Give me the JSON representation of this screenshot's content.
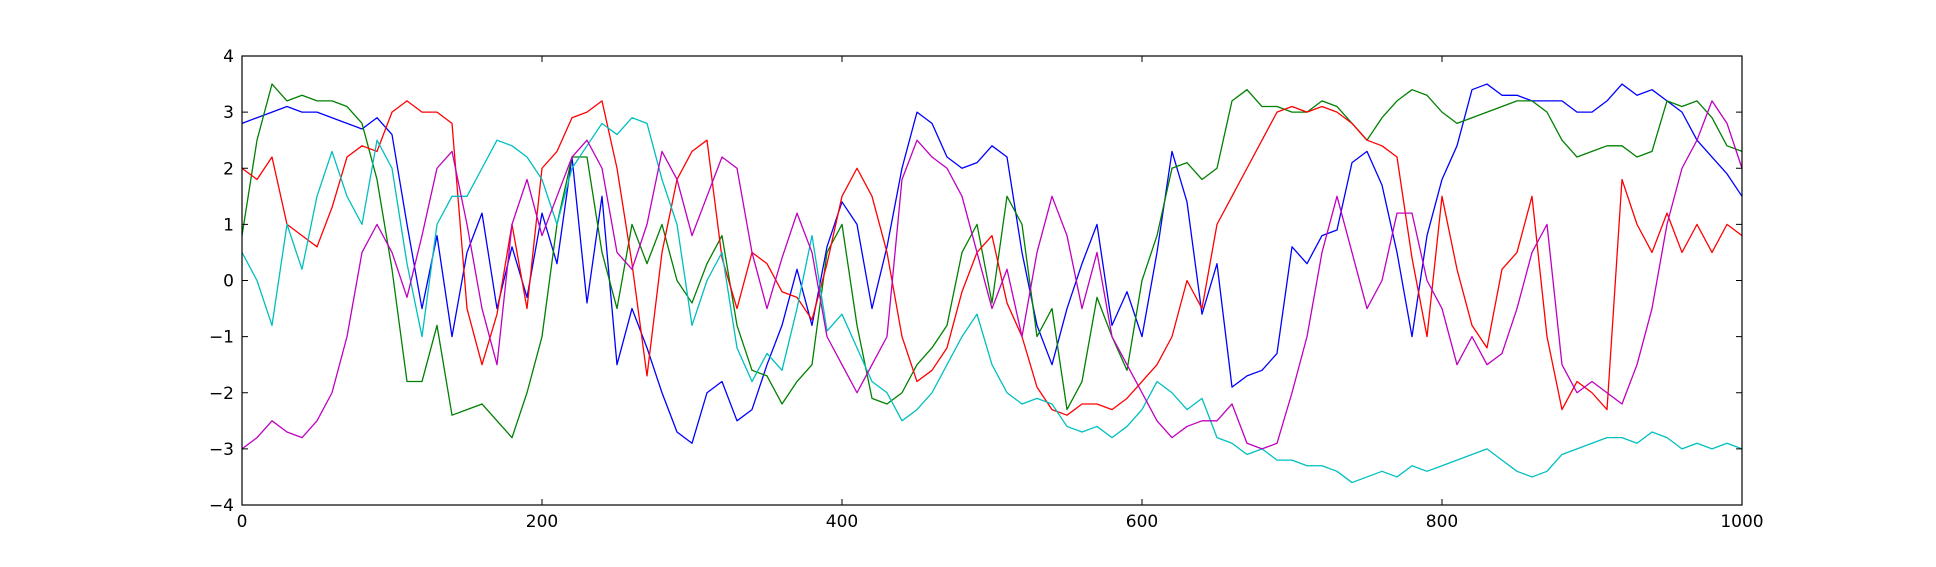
{
  "chart_data": {
    "type": "line",
    "title": "",
    "xlabel": "",
    "ylabel": "",
    "xlim": [
      0,
      1000
    ],
    "ylim": [
      -4,
      4
    ],
    "xticks": [
      0,
      200,
      400,
      600,
      800,
      1000
    ],
    "yticks": [
      -4,
      -3,
      -2,
      -1,
      0,
      1,
      2,
      3,
      4
    ],
    "grid": false,
    "legend": "none",
    "x": [
      0,
      10,
      20,
      30,
      40,
      50,
      60,
      70,
      80,
      90,
      100,
      110,
      120,
      130,
      140,
      150,
      160,
      170,
      180,
      190,
      200,
      210,
      220,
      230,
      240,
      250,
      260,
      270,
      280,
      290,
      300,
      310,
      320,
      330,
      340,
      350,
      360,
      370,
      380,
      390,
      400,
      410,
      420,
      430,
      440,
      450,
      460,
      470,
      480,
      490,
      500,
      510,
      520,
      530,
      540,
      550,
      560,
      570,
      580,
      590,
      600,
      610,
      620,
      630,
      640,
      650,
      660,
      670,
      680,
      690,
      700,
      710,
      720,
      730,
      740,
      750,
      760,
      770,
      780,
      790,
      800,
      810,
      820,
      830,
      840,
      850,
      860,
      870,
      880,
      890,
      900,
      910,
      920,
      930,
      940,
      950,
      960,
      970,
      980,
      990,
      1000
    ],
    "series": [
      {
        "color": "#0000ff",
        "values": [
          2.8,
          2.9,
          3.0,
          3.1,
          3.0,
          3.0,
          2.9,
          2.8,
          2.7,
          2.9,
          2.6,
          1.0,
          -0.5,
          0.8,
          -1.0,
          0.5,
          1.2,
          -0.5,
          0.6,
          -0.3,
          1.2,
          0.3,
          2.2,
          -0.4,
          1.5,
          -1.5,
          -0.5,
          -1.2,
          -2.0,
          -2.7,
          -2.9,
          -2.0,
          -1.8,
          -2.5,
          -2.3,
          -1.5,
          -0.8,
          0.2,
          -0.8,
          0.6,
          1.4,
          1.0,
          -0.5,
          0.6,
          2.0,
          3.0,
          2.8,
          2.2,
          2.0,
          2.1,
          2.4,
          2.2,
          0.5,
          -0.8,
          -1.5,
          -0.5,
          0.3,
          1.0,
          -0.8,
          -0.2,
          -1.0,
          0.5,
          2.3,
          1.4,
          -0.6,
          0.3,
          -1.9,
          -1.7,
          -1.6,
          -1.3,
          0.6,
          0.3,
          0.8,
          0.9,
          2.1,
          2.3,
          1.7,
          0.5,
          -1.0,
          0.8,
          1.8,
          2.4,
          3.4,
          3.5,
          3.3,
          3.3,
          3.2,
          3.2,
          3.2,
          3.0,
          3.0,
          3.2,
          3.5,
          3.3,
          3.4,
          3.2,
          3.0,
          2.5,
          2.2,
          1.9,
          1.5
        ]
      },
      {
        "color": "#008000",
        "values": [
          0.8,
          2.5,
          3.5,
          3.2,
          3.3,
          3.2,
          3.2,
          3.1,
          2.8,
          1.8,
          0.2,
          -1.8,
          -1.8,
          -0.8,
          -2.4,
          -2.3,
          -2.2,
          -2.5,
          -2.8,
          -2.0,
          -1.0,
          1.0,
          2.2,
          2.2,
          0.5,
          -0.5,
          1.0,
          0.3,
          1.0,
          0.0,
          -0.4,
          0.3,
          0.8,
          -0.8,
          -1.6,
          -1.7,
          -2.2,
          -1.8,
          -1.5,
          0.5,
          1.0,
          -0.8,
          -2.1,
          -2.2,
          -2.0,
          -1.5,
          -1.2,
          -0.8,
          0.5,
          1.0,
          -0.4,
          1.5,
          1.0,
          -1.0,
          -0.5,
          -2.3,
          -1.8,
          -0.3,
          -1.0,
          -1.6,
          0.0,
          0.8,
          2.0,
          2.1,
          1.8,
          2.0,
          3.2,
          3.4,
          3.1,
          3.1,
          3.0,
          3.0,
          3.2,
          3.1,
          2.8,
          2.5,
          2.9,
          3.2,
          3.4,
          3.3,
          3.0,
          2.8,
          2.9,
          3.0,
          3.1,
          3.2,
          3.2,
          3.0,
          2.5,
          2.2,
          2.3,
          2.4,
          2.4,
          2.2,
          2.3,
          3.2,
          3.1,
          3.2,
          2.9,
          2.4,
          2.3
        ]
      },
      {
        "color": "#ff0000",
        "values": [
          2.0,
          1.8,
          2.2,
          1.0,
          0.8,
          0.6,
          1.3,
          2.2,
          2.4,
          2.3,
          3.0,
          3.2,
          3.0,
          3.0,
          2.8,
          -0.5,
          -1.5,
          -0.6,
          1.0,
          -0.5,
          2.0,
          2.3,
          2.9,
          3.0,
          3.2,
          2.0,
          0.3,
          -1.7,
          0.5,
          1.8,
          2.3,
          2.5,
          0.4,
          -0.5,
          0.5,
          0.3,
          -0.2,
          -0.3,
          -0.7,
          0.3,
          1.5,
          2.0,
          1.5,
          0.5,
          -1.0,
          -1.8,
          -1.6,
          -1.2,
          -0.2,
          0.5,
          0.8,
          -0.4,
          -1.0,
          -1.9,
          -2.3,
          -2.4,
          -2.2,
          -2.2,
          -2.3,
          -2.1,
          -1.8,
          -1.5,
          -1.0,
          0.0,
          -0.5,
          1.0,
          1.5,
          2.0,
          2.5,
          3.0,
          3.1,
          3.0,
          3.1,
          3.0,
          2.8,
          2.5,
          2.4,
          2.2,
          0.4,
          -1.0,
          1.5,
          0.2,
          -0.8,
          -1.2,
          0.2,
          0.5,
          1.5,
          -1.0,
          -2.3,
          -1.8,
          -2.0,
          -2.3,
          1.8,
          1.0,
          0.5,
          1.2,
          0.5,
          1.0,
          0.5,
          1.0,
          0.8
        ]
      },
      {
        "color": "#00bfbf",
        "values": [
          0.5,
          0.0,
          -0.8,
          1.0,
          0.2,
          1.5,
          2.3,
          1.5,
          1.0,
          2.5,
          2.0,
          0.3,
          -1.0,
          1.0,
          1.5,
          1.5,
          2.0,
          2.5,
          2.4,
          2.2,
          1.8,
          1.0,
          2.0,
          2.4,
          2.8,
          2.6,
          2.9,
          2.8,
          1.8,
          1.0,
          -0.8,
          0.0,
          0.5,
          -1.2,
          -1.8,
          -1.3,
          -1.6,
          -0.5,
          0.8,
          -0.9,
          -0.6,
          -1.2,
          -1.8,
          -2.0,
          -2.5,
          -2.3,
          -2.0,
          -1.5,
          -1.0,
          -0.6,
          -1.5,
          -2.0,
          -2.2,
          -2.1,
          -2.2,
          -2.6,
          -2.7,
          -2.6,
          -2.8,
          -2.6,
          -2.3,
          -1.8,
          -2.0,
          -2.3,
          -2.1,
          -2.8,
          -2.9,
          -3.1,
          -3.0,
          -3.2,
          -3.2,
          -3.3,
          -3.3,
          -3.4,
          -3.6,
          -3.5,
          -3.4,
          -3.5,
          -3.3,
          -3.4,
          -3.3,
          -3.2,
          -3.1,
          -3.0,
          -3.2,
          -3.4,
          -3.5,
          -3.4,
          -3.1,
          -3.0,
          -2.9,
          -2.8,
          -2.8,
          -2.9,
          -2.7,
          -2.8,
          -3.0,
          -2.9,
          -3.0,
          -2.9,
          -3.0
        ]
      },
      {
        "color": "#bf00bf",
        "values": [
          -3.0,
          -2.8,
          -2.5,
          -2.7,
          -2.8,
          -2.5,
          -2.0,
          -1.0,
          0.5,
          1.0,
          0.5,
          -0.3,
          0.8,
          2.0,
          2.3,
          1.0,
          -0.5,
          -1.5,
          1.0,
          1.8,
          0.8,
          1.5,
          2.2,
          2.5,
          2.0,
          0.5,
          0.2,
          1.0,
          2.3,
          1.8,
          0.8,
          1.5,
          2.2,
          2.0,
          0.5,
          -0.5,
          0.4,
          1.2,
          0.5,
          -1.0,
          -1.5,
          -2.0,
          -1.5,
          -1.0,
          1.8,
          2.5,
          2.2,
          2.0,
          1.5,
          0.5,
          -0.5,
          0.2,
          -1.0,
          0.5,
          1.5,
          0.8,
          -0.5,
          0.5,
          -1.0,
          -1.5,
          -2.0,
          -2.5,
          -2.8,
          -2.6,
          -2.5,
          -2.5,
          -2.2,
          -2.9,
          -3.0,
          -2.9,
          -2.0,
          -1.0,
          0.5,
          1.5,
          0.5,
          -0.5,
          0.0,
          1.2,
          1.2,
          0.0,
          -0.5,
          -1.5,
          -1.0,
          -1.5,
          -1.3,
          -0.5,
          0.5,
          1.0,
          -1.5,
          -2.0,
          -1.8,
          -2.0,
          -2.2,
          -1.5,
          -0.5,
          1.0,
          2.0,
          2.5,
          3.2,
          2.8,
          2.0
        ]
      }
    ]
  }
}
